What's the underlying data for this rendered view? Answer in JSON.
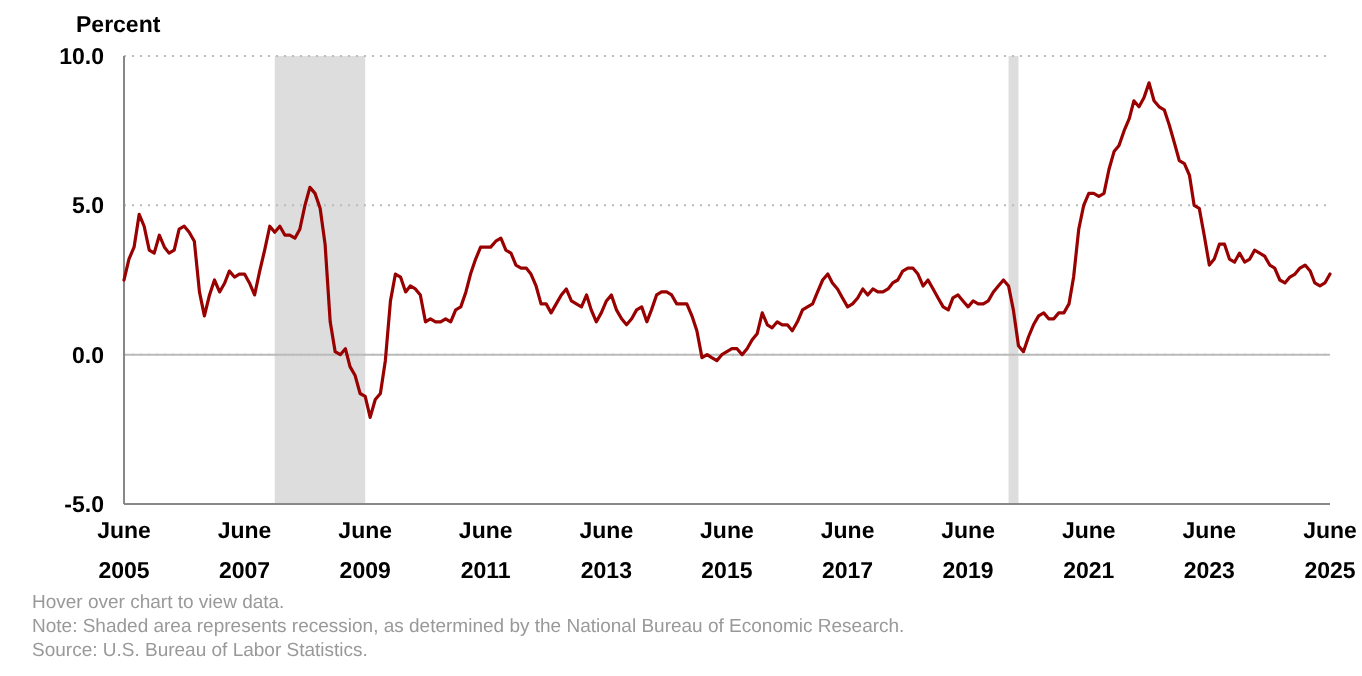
{
  "chart_data": {
    "type": "line",
    "ylabel": "Percent",
    "x": [
      "2005-06",
      "2005-07",
      "2005-08",
      "2005-09",
      "2005-10",
      "2005-11",
      "2005-12",
      "2006-01",
      "2006-02",
      "2006-03",
      "2006-04",
      "2006-05",
      "2006-06",
      "2006-07",
      "2006-08",
      "2006-09",
      "2006-10",
      "2006-11",
      "2006-12",
      "2007-01",
      "2007-02",
      "2007-03",
      "2007-04",
      "2007-05",
      "2007-06",
      "2007-07",
      "2007-08",
      "2007-09",
      "2007-10",
      "2007-11",
      "2007-12",
      "2008-01",
      "2008-02",
      "2008-03",
      "2008-04",
      "2008-05",
      "2008-06",
      "2008-07",
      "2008-08",
      "2008-09",
      "2008-10",
      "2008-11",
      "2008-12",
      "2009-01",
      "2009-02",
      "2009-03",
      "2009-04",
      "2009-05",
      "2009-06",
      "2009-07",
      "2009-08",
      "2009-09",
      "2009-10",
      "2009-11",
      "2009-12",
      "2010-01",
      "2010-02",
      "2010-03",
      "2010-04",
      "2010-05",
      "2010-06",
      "2010-07",
      "2010-08",
      "2010-09",
      "2010-10",
      "2010-11",
      "2010-12",
      "2011-01",
      "2011-02",
      "2011-03",
      "2011-04",
      "2011-05",
      "2011-06",
      "2011-07",
      "2011-08",
      "2011-09",
      "2011-10",
      "2011-11",
      "2011-12",
      "2012-01",
      "2012-02",
      "2012-03",
      "2012-04",
      "2012-05",
      "2012-06",
      "2012-07",
      "2012-08",
      "2012-09",
      "2012-10",
      "2012-11",
      "2012-12",
      "2013-01",
      "2013-02",
      "2013-03",
      "2013-04",
      "2013-05",
      "2013-06",
      "2013-07",
      "2013-08",
      "2013-09",
      "2013-10",
      "2013-11",
      "2013-12",
      "2014-01",
      "2014-02",
      "2014-03",
      "2014-04",
      "2014-05",
      "2014-06",
      "2014-07",
      "2014-08",
      "2014-09",
      "2014-10",
      "2014-11",
      "2014-12",
      "2015-01",
      "2015-02",
      "2015-03",
      "2015-04",
      "2015-05",
      "2015-06",
      "2015-07",
      "2015-08",
      "2015-09",
      "2015-10",
      "2015-11",
      "2015-12",
      "2016-01",
      "2016-02",
      "2016-03",
      "2016-04",
      "2016-05",
      "2016-06",
      "2016-07",
      "2016-08",
      "2016-09",
      "2016-10",
      "2016-11",
      "2016-12",
      "2017-01",
      "2017-02",
      "2017-03",
      "2017-04",
      "2017-05",
      "2017-06",
      "2017-07",
      "2017-08",
      "2017-09",
      "2017-10",
      "2017-11",
      "2017-12",
      "2018-01",
      "2018-02",
      "2018-03",
      "2018-04",
      "2018-05",
      "2018-06",
      "2018-07",
      "2018-08",
      "2018-09",
      "2018-10",
      "2018-11",
      "2018-12",
      "2019-01",
      "2019-02",
      "2019-03",
      "2019-04",
      "2019-05",
      "2019-06",
      "2019-07",
      "2019-08",
      "2019-09",
      "2019-10",
      "2019-11",
      "2019-12",
      "2020-01",
      "2020-02",
      "2020-03",
      "2020-04",
      "2020-05",
      "2020-06",
      "2020-07",
      "2020-08",
      "2020-09",
      "2020-10",
      "2020-11",
      "2020-12",
      "2021-01",
      "2021-02",
      "2021-03",
      "2021-04",
      "2021-05",
      "2021-06",
      "2021-07",
      "2021-08",
      "2021-09",
      "2021-10",
      "2021-11",
      "2021-12",
      "2022-01",
      "2022-02",
      "2022-03",
      "2022-04",
      "2022-05",
      "2022-06",
      "2022-07",
      "2022-08",
      "2022-09",
      "2022-10",
      "2022-11",
      "2022-12",
      "2023-01",
      "2023-02",
      "2023-03",
      "2023-04",
      "2023-05",
      "2023-06",
      "2023-07",
      "2023-08",
      "2023-09",
      "2023-10",
      "2023-11",
      "2023-12",
      "2024-01",
      "2024-02",
      "2024-03",
      "2024-04",
      "2024-05",
      "2024-06",
      "2024-07",
      "2024-08",
      "2024-09",
      "2024-10",
      "2024-11",
      "2024-12",
      "2025-01",
      "2025-02",
      "2025-03",
      "2025-04",
      "2025-05",
      "2025-06"
    ],
    "series": [
      {
        "color": "#990000",
        "values": [
          2.5,
          3.2,
          3.6,
          4.7,
          4.3,
          3.5,
          3.4,
          4.0,
          3.6,
          3.4,
          3.5,
          4.2,
          4.3,
          4.1,
          3.8,
          2.1,
          1.3,
          2.0,
          2.5,
          2.1,
          2.4,
          2.8,
          2.6,
          2.7,
          2.7,
          2.4,
          2.0,
          2.8,
          3.5,
          4.3,
          4.1,
          4.3,
          4.0,
          4.0,
          3.9,
          4.2,
          5.0,
          5.6,
          5.4,
          4.9,
          3.7,
          1.1,
          0.1,
          0.0,
          0.2,
          -0.4,
          -0.7,
          -1.3,
          -1.4,
          -2.1,
          -1.5,
          -1.3,
          -0.2,
          1.8,
          2.7,
          2.6,
          2.1,
          2.3,
          2.2,
          2.0,
          1.1,
          1.2,
          1.1,
          1.1,
          1.2,
          1.1,
          1.5,
          1.6,
          2.1,
          2.7,
          3.2,
          3.6,
          3.6,
          3.6,
          3.8,
          3.9,
          3.5,
          3.4,
          3.0,
          2.9,
          2.9,
          2.7,
          2.3,
          1.7,
          1.7,
          1.4,
          1.7,
          2.0,
          2.2,
          1.8,
          1.7,
          1.6,
          2.0,
          1.5,
          1.1,
          1.4,
          1.8,
          2.0,
          1.5,
          1.2,
          1.0,
          1.2,
          1.5,
          1.6,
          1.1,
          1.5,
          2.0,
          2.1,
          2.1,
          2.0,
          1.7,
          1.7,
          1.7,
          1.3,
          0.8,
          -0.1,
          0.0,
          -0.1,
          -0.2,
          0.0,
          0.1,
          0.2,
          0.2,
          0.0,
          0.2,
          0.5,
          0.7,
          1.4,
          1.0,
          0.9,
          1.1,
          1.0,
          1.0,
          0.8,
          1.1,
          1.5,
          1.6,
          1.7,
          2.1,
          2.5,
          2.7,
          2.4,
          2.2,
          1.9,
          1.6,
          1.7,
          1.9,
          2.2,
          2.0,
          2.2,
          2.1,
          2.1,
          2.2,
          2.4,
          2.5,
          2.8,
          2.9,
          2.9,
          2.7,
          2.3,
          2.5,
          2.2,
          1.9,
          1.6,
          1.5,
          1.9,
          2.0,
          1.8,
          1.6,
          1.8,
          1.7,
          1.7,
          1.8,
          2.1,
          2.3,
          2.5,
          2.3,
          1.5,
          0.3,
          0.1,
          0.6,
          1.0,
          1.3,
          1.4,
          1.2,
          1.2,
          1.4,
          1.4,
          1.7,
          2.6,
          4.2,
          5.0,
          5.4,
          5.4,
          5.3,
          5.4,
          6.2,
          6.8,
          7.0,
          7.5,
          7.9,
          8.5,
          8.3,
          8.6,
          9.1,
          8.5,
          8.3,
          8.2,
          7.7,
          7.1,
          6.5,
          6.4,
          6.0,
          5.0,
          4.9,
          4.0,
          3.0,
          3.2,
          3.7,
          3.7,
          3.2,
          3.1,
          3.4,
          3.1,
          3.2,
          3.5,
          3.4,
          3.3,
          3.0,
          2.9,
          2.5,
          2.4,
          2.6,
          2.7,
          2.9,
          3.0,
          2.8,
          2.4,
          2.3,
          2.4,
          2.7
        ]
      }
    ],
    "xlim": [
      "2005-06",
      "2025-06"
    ],
    "xticks": [
      {
        "value": "2005-06",
        "label": "June\n2005"
      },
      {
        "value": "2007-06",
        "label": "June\n2007"
      },
      {
        "value": "2009-06",
        "label": "June\n2009"
      },
      {
        "value": "2011-06",
        "label": "June\n2011"
      },
      {
        "value": "2013-06",
        "label": "June\n2013"
      },
      {
        "value": "2015-06",
        "label": "June\n2015"
      },
      {
        "value": "2017-06",
        "label": "June\n2017"
      },
      {
        "value": "2019-06",
        "label": "June\n2019"
      },
      {
        "value": "2021-06",
        "label": "June\n2021"
      },
      {
        "value": "2023-06",
        "label": "June\n2023"
      },
      {
        "value": "2025-06",
        "label": "June\n2025"
      }
    ],
    "ylim": [
      -5,
      10
    ],
    "yticks": [
      {
        "value": -5,
        "label": "-5.0"
      },
      {
        "value": 0,
        "label": "0.0"
      },
      {
        "value": 5,
        "label": "5.0"
      },
      {
        "value": 10,
        "label": "10.0"
      }
    ],
    "grid": "y",
    "line_style": "solid",
    "bands": [
      {
        "axis": "x",
        "from": "2007-12",
        "to": "2009-06",
        "color": "#dddddd"
      },
      {
        "axis": "x",
        "from": "2020-02",
        "to": "2020-04",
        "color": "#dddddd"
      }
    ],
    "ref_lines": [
      {
        "axis": "y",
        "value": 0,
        "color": "#bbbbbb"
      }
    ],
    "annotations": [
      "Hover over chart to view data.",
      "Note: Shaded area represents recession, as determined by the National Bureau of Economic Research.",
      "Source: U.S. Bureau of Labor Statistics."
    ]
  }
}
